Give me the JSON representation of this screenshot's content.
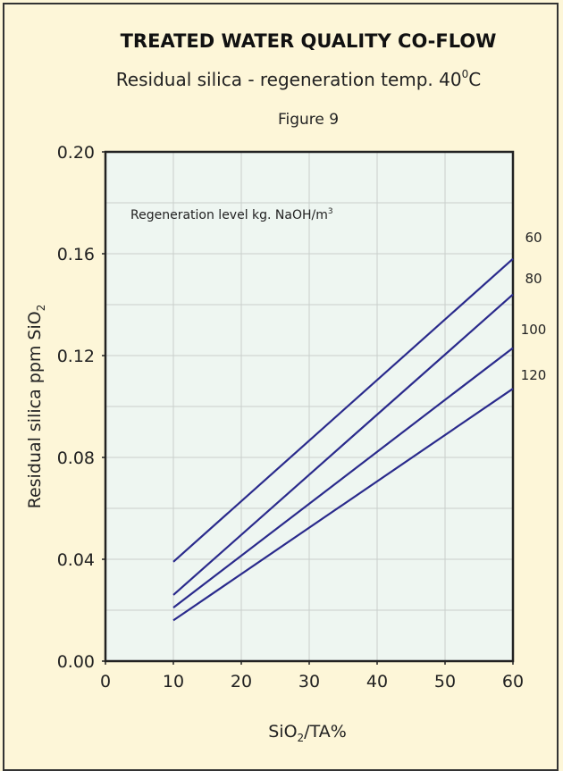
{
  "header": {
    "title": "TREATED WATER QUALITY CO-FLOW",
    "subtitle": "Residual silica - regeneration temp. 40",
    "subtitle_sup": "0",
    "subtitle_unit": "C",
    "figure": "Figure 9"
  },
  "colors": {
    "background": "#fdf6d8",
    "plot_area": "#eef6f1",
    "series_line": "#2a2a8c",
    "grid": "#c9cfcc"
  },
  "chart_data": {
    "type": "line",
    "title": "TREATED WATER QUALITY CO-FLOW",
    "xlabel_main": "SiO",
    "xlabel_sub": "2",
    "xlabel_rest": "/TA%",
    "ylabel_main": "Residual silica ppm SiO",
    "ylabel_sub": "2",
    "xlim": [
      0,
      60
    ],
    "ylim": [
      0,
      0.2
    ],
    "x_ticks": [
      "0",
      "10",
      "20",
      "30",
      "40",
      "50",
      "60"
    ],
    "y_ticks": [
      "0.00",
      "0.04",
      "0.08",
      "0.12",
      "0.16",
      "0.20"
    ],
    "grid": true,
    "legend_title_main": "Regeneration level kg. NaOH/m",
    "legend_title_sup": "3",
    "series": [
      {
        "name": "60",
        "x": [
          10,
          60
        ],
        "y": [
          0.039,
          0.158
        ]
      },
      {
        "name": "80",
        "x": [
          10,
          60
        ],
        "y": [
          0.026,
          0.144
        ]
      },
      {
        "name": "100",
        "x": [
          10,
          60
        ],
        "y": [
          0.021,
          0.123
        ]
      },
      {
        "name": "120",
        "x": [
          10,
          60
        ],
        "y": [
          0.016,
          0.107
        ]
      }
    ]
  }
}
